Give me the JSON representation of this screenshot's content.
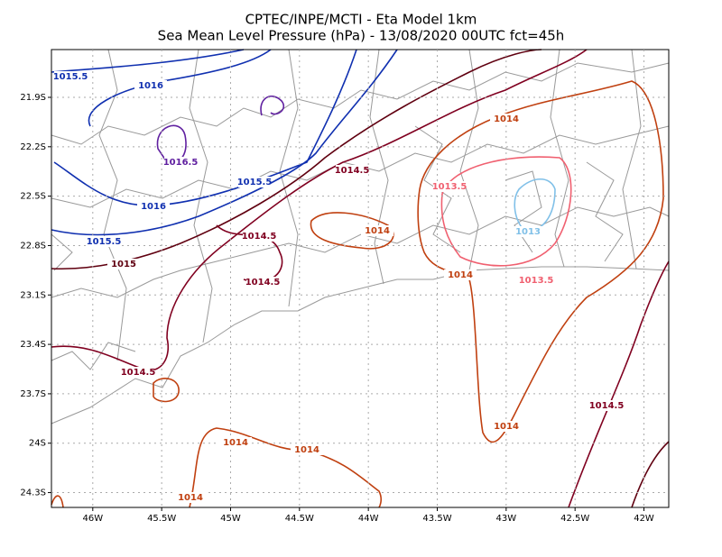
{
  "chart_data": {
    "type": "map",
    "title": "CPTEC/INPE/MCTI -  Eta Model 1km",
    "subtitle": "Sea Mean Level Pressure (hPa) - 13/08/2020 00UTC fct=45h",
    "xlim": [
      -46.3,
      -41.82
    ],
    "ylim": [
      -24.39,
      -21.61
    ],
    "xticks": [
      {
        "value": -46,
        "label": "46W"
      },
      {
        "value": -45.5,
        "label": "45.5W"
      },
      {
        "value": -45,
        "label": "45W"
      },
      {
        "value": -44.5,
        "label": "44.5W"
      },
      {
        "value": -44,
        "label": "44W"
      },
      {
        "value": -43.5,
        "label": "43.5W"
      },
      {
        "value": -43,
        "label": "43W"
      },
      {
        "value": -42.5,
        "label": "42.5W"
      },
      {
        "value": -42,
        "label": "42W"
      }
    ],
    "yticks": [
      {
        "value": -21.9,
        "label": "21.9S"
      },
      {
        "value": -22.2,
        "label": "22.2S"
      },
      {
        "value": -22.5,
        "label": "22.5S"
      },
      {
        "value": -22.8,
        "label": "22.8S"
      },
      {
        "value": -23.1,
        "label": "23.1S"
      },
      {
        "value": -23.4,
        "label": "23.4S"
      },
      {
        "value": -23.7,
        "label": "23.7S"
      },
      {
        "value": -24,
        "label": "24S"
      },
      {
        "value": -24.3,
        "label": "24.3S"
      }
    ],
    "grid": true,
    "contour_labels": [
      {
        "text": "1015.5",
        "color": "#1030b0"
      },
      {
        "text": "1016",
        "color": "#1030b0"
      },
      {
        "text": "1016.5",
        "color": "#6020a0"
      },
      {
        "text": "1015.5",
        "color": "#1030b0"
      },
      {
        "text": "1016",
        "color": "#1030b0"
      },
      {
        "text": "1015.5",
        "color": "#1030b0"
      },
      {
        "text": "1015",
        "color": "#600010"
      },
      {
        "text": "1014.5",
        "color": "#800020"
      },
      {
        "text": "1014.5",
        "color": "#800020"
      },
      {
        "text": "1014.5",
        "color": "#800020"
      },
      {
        "text": "1014.5",
        "color": "#800020"
      },
      {
        "text": "1014",
        "color": "#c04010"
      },
      {
        "text": "1014",
        "color": "#c04010"
      },
      {
        "text": "1014",
        "color": "#c04010"
      },
      {
        "text": "1013.5",
        "color": "#f06070"
      },
      {
        "text": "1013.5",
        "color": "#f06070"
      },
      {
        "text": "1013",
        "color": "#80c0e8"
      },
      {
        "text": "1014",
        "color": "#c04010"
      },
      {
        "text": "1014.5",
        "color": "#800020"
      },
      {
        "text": "1014",
        "color": "#c04010"
      },
      {
        "text": "1014",
        "color": "#c04010"
      },
      {
        "text": "1014",
        "color": "#c04010"
      }
    ]
  }
}
